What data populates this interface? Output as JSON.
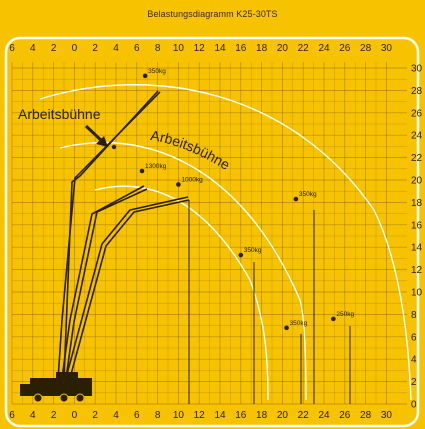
{
  "title": "Belastungsdiagramm K25-30TS",
  "colors": {
    "background": "#f7c300",
    "panel_border": "#ffffff",
    "grid": "#7a5a00",
    "boom": "#2a2000",
    "arc": "#ffffff",
    "text": "#2a2000"
  },
  "axes": {
    "x_ticks": [
      "6",
      "4",
      "2",
      "0",
      "2",
      "4",
      "6",
      "8",
      "10",
      "12",
      "14",
      "16",
      "18",
      "20",
      "22",
      "24",
      "26",
      "28",
      "30"
    ],
    "y_ticks": [
      "30",
      "28",
      "26",
      "24",
      "22",
      "20",
      "18",
      "16",
      "14",
      "12",
      "10",
      "8",
      "6",
      "4",
      "2",
      "0"
    ]
  },
  "labels": {
    "arbeitsbuehne_pointer": "Arbeitsbühne",
    "arbeitsbuehne_arc": "Arbeitsbühne"
  },
  "load_points": [
    {
      "label": "350kg",
      "x": 6.8,
      "y": 29.3
    },
    {
      "label": "1300kg",
      "x": 6.5,
      "y": 20.8
    },
    {
      "label": "1000kg",
      "x": 10.0,
      "y": 19.6
    },
    {
      "label": "350kg",
      "x": 21.3,
      "y": 18.3
    },
    {
      "label": "350kg",
      "x": 16.0,
      "y": 13.3
    },
    {
      "label": "350kg",
      "x": 20.4,
      "y": 6.8
    },
    {
      "label": "250kg",
      "x": 24.9,
      "y": 7.6
    }
  ]
}
